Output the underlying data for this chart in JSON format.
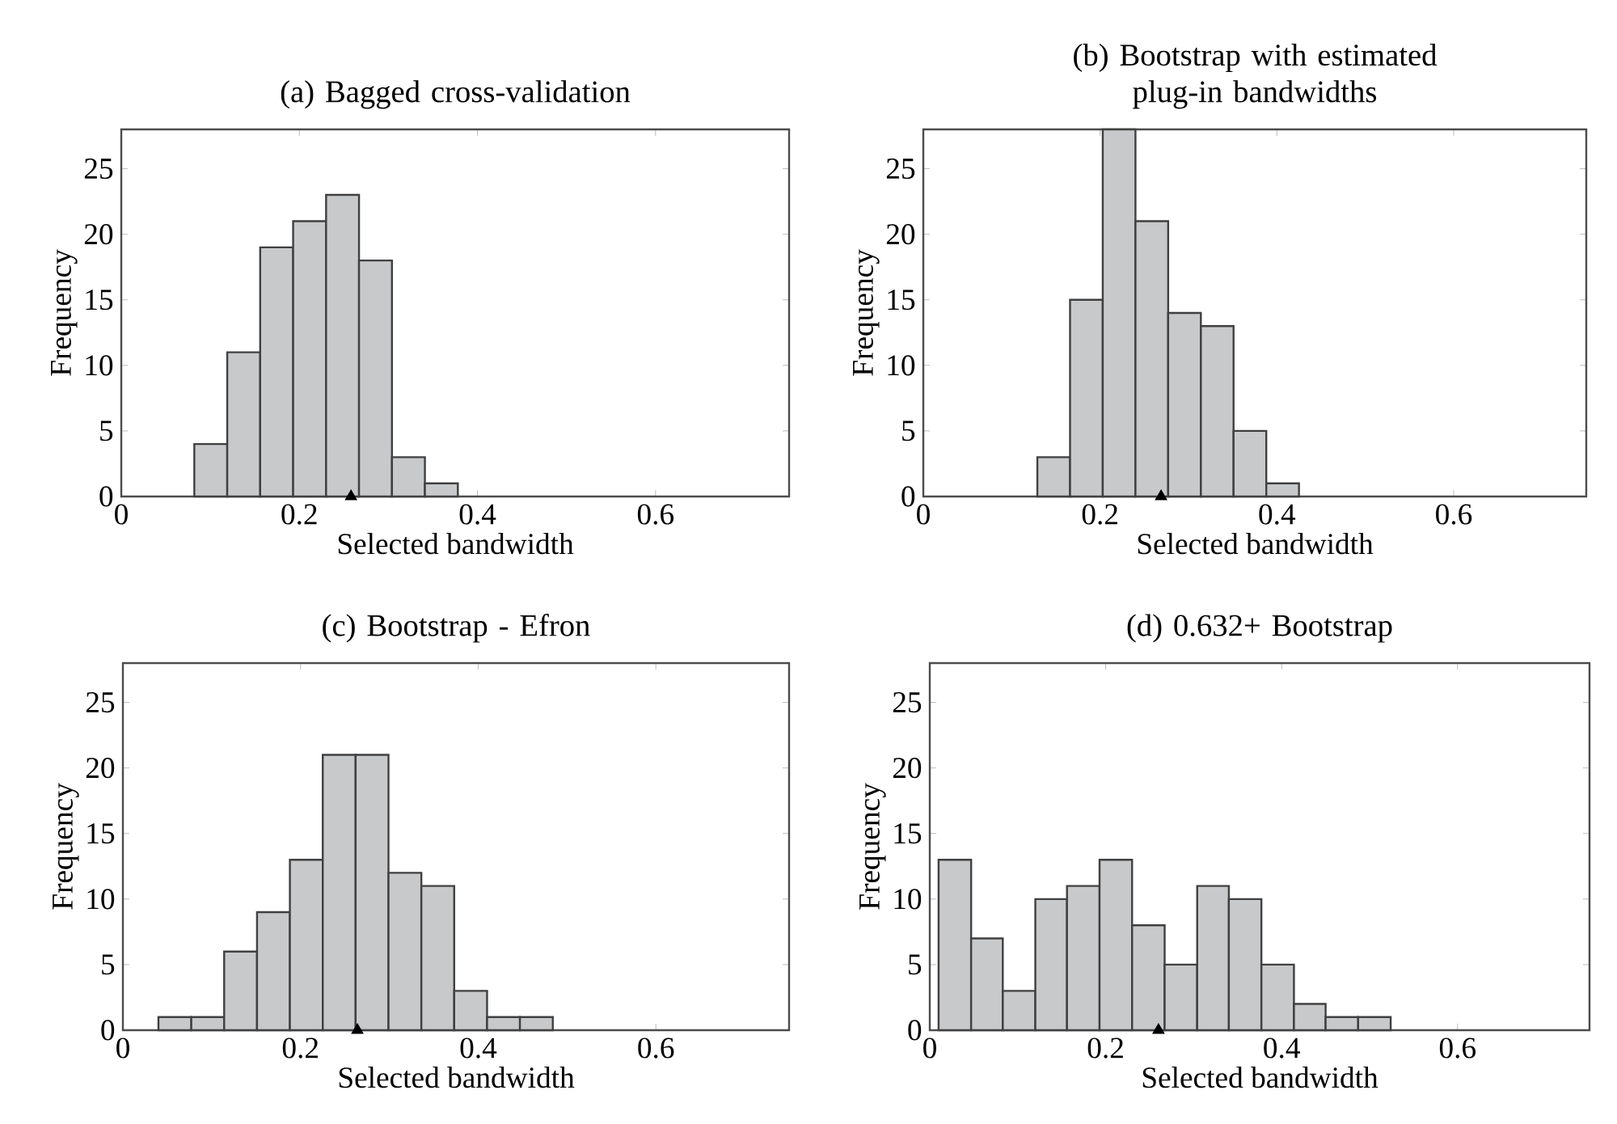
{
  "chart_data": [
    {
      "type": "histogram",
      "title": "(a) Bagged cross-validation",
      "xlabel": "Selected bandwidth",
      "ylabel": "Frequency",
      "xlim": [
        0,
        0.75
      ],
      "ylim": [
        0,
        28
      ],
      "xticks": [
        0,
        0.2,
        0.4,
        0.6
      ],
      "yticks": [
        0,
        5,
        10,
        15,
        20,
        25
      ],
      "series": [
        {
          "color": "#c8c9cb",
          "bins": [
            0.082,
            0.119,
            0.156,
            0.193,
            0.23,
            0.267,
            0.304,
            0.341,
            0.378
          ],
          "values": [
            4,
            11,
            19,
            21,
            23,
            18,
            3,
            1
          ]
        },
        {
          "type": "scatter",
          "color": "#000000",
          "marker": "triangle",
          "x": [
            0.258
          ],
          "values": [
            0
          ]
        }
      ]
    },
    {
      "type": "histogram",
      "title": "(b) Bootstrap with estimated plug-in bandwidths",
      "xlabel": "Selected bandwidth",
      "ylabel": "Frequency",
      "xlim": [
        0,
        0.75
      ],
      "ylim": [
        0,
        28
      ],
      "xticks": [
        0,
        0.2,
        0.4,
        0.6
      ],
      "yticks": [
        0,
        5,
        10,
        15,
        20,
        25
      ],
      "series": [
        {
          "color": "#c8c9cb",
          "bins": [
            0.129,
            0.166,
            0.203,
            0.24,
            0.277,
            0.314,
            0.351,
            0.388,
            0.425
          ],
          "values": [
            3,
            15,
            28,
            21,
            14,
            13,
            5,
            1
          ]
        },
        {
          "type": "scatter",
          "color": "#000000",
          "marker": "triangle",
          "x": [
            0.269
          ],
          "values": [
            0
          ]
        }
      ]
    },
    {
      "type": "histogram",
      "title": "(c) Bootstrap - Efron",
      "xlabel": "Selected bandwidth",
      "ylabel": "Frequency",
      "xlim": [
        0,
        0.75
      ],
      "ylim": [
        0,
        28
      ],
      "xticks": [
        0,
        0.2,
        0.4,
        0.6
      ],
      "yticks": [
        0,
        5,
        10,
        15,
        20,
        25
      ],
      "series": [
        {
          "color": "#c8c9cb",
          "bins": [
            0.04,
            0.077,
            0.114,
            0.151,
            0.188,
            0.225,
            0.262,
            0.299,
            0.336,
            0.373,
            0.41,
            0.447,
            0.484
          ],
          "values": [
            1,
            1,
            6,
            9,
            13,
            21,
            21,
            12,
            11,
            3,
            1,
            1
          ]
        },
        {
          "type": "scatter",
          "color": "#000000",
          "marker": "triangle",
          "x": [
            0.264
          ],
          "values": [
            0
          ]
        }
      ]
    },
    {
      "type": "histogram",
      "title": "(d) 0.632+ Bootstrap",
      "xlabel": "Selected bandwidth",
      "ylabel": "Frequency",
      "xlim": [
        0,
        0.75
      ],
      "ylim": [
        0,
        28
      ],
      "xticks": [
        0,
        0.2,
        0.4,
        0.6
      ],
      "yticks": [
        0,
        5,
        10,
        15,
        20,
        25
      ],
      "series": [
        {
          "color": "#c8c9cb",
          "bins": [
            0.01,
            0.047,
            0.083,
            0.12,
            0.156,
            0.193,
            0.23,
            0.267,
            0.304,
            0.34,
            0.377,
            0.414,
            0.45,
            0.487,
            0.524
          ],
          "values": [
            13,
            7,
            3,
            10,
            11,
            13,
            8,
            5,
            11,
            10,
            5,
            2,
            1,
            1
          ]
        },
        {
          "type": "scatter",
          "color": "#000000",
          "marker": "triangle",
          "x": [
            0.26
          ],
          "values": [
            0
          ]
        }
      ]
    }
  ]
}
